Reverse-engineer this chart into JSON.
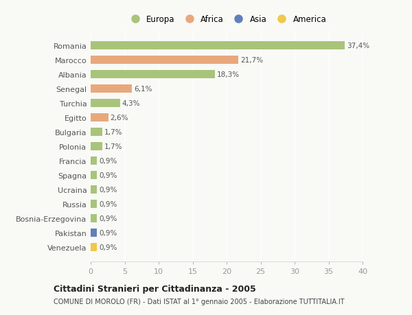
{
  "title": "Cittadini Stranieri per Cittadinanza - 2005",
  "subtitle": "COMUNE DI MOROLO (FR) - Dati ISTAT al 1° gennaio 2005 - Elaborazione TUTTITALIA.IT",
  "countries": [
    "Romania",
    "Marocco",
    "Albania",
    "Senegal",
    "Turchia",
    "Egitto",
    "Bulgaria",
    "Polonia",
    "Francia",
    "Spagna",
    "Ucraina",
    "Russia",
    "Bosnia-Erzegovina",
    "Pakistan",
    "Venezuela"
  ],
  "values": [
    37.4,
    21.7,
    18.3,
    6.1,
    4.3,
    2.6,
    1.7,
    1.7,
    0.9,
    0.9,
    0.9,
    0.9,
    0.9,
    0.9,
    0.9
  ],
  "labels": [
    "37,4%",
    "21,7%",
    "18,3%",
    "6,1%",
    "4,3%",
    "2,6%",
    "1,7%",
    "1,7%",
    "0,9%",
    "0,9%",
    "0,9%",
    "0,9%",
    "0,9%",
    "0,9%",
    "0,9%"
  ],
  "continents": [
    "Europa",
    "Africa",
    "Europa",
    "Africa",
    "Europa",
    "Africa",
    "Europa",
    "Europa",
    "Europa",
    "Europa",
    "Europa",
    "Europa",
    "Europa",
    "Asia",
    "America"
  ],
  "colors": {
    "Europa": "#a8c47a",
    "Africa": "#e8a87c",
    "Asia": "#6080b8",
    "America": "#f0c84a"
  },
  "legend_order": [
    "Europa",
    "Africa",
    "Asia",
    "America"
  ],
  "xlim": [
    0,
    40
  ],
  "xticks": [
    0,
    5,
    10,
    15,
    20,
    25,
    30,
    35,
    40
  ],
  "background_color": "#f9f9f6",
  "grid_color": "#ffffff",
  "bar_height": 0.55
}
